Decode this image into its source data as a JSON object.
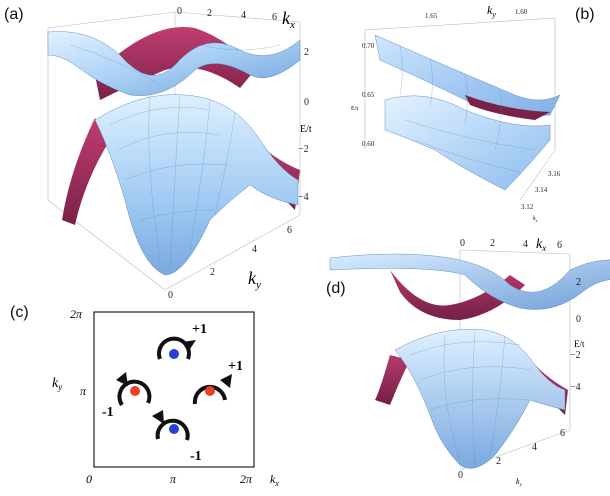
{
  "panel_labels": {
    "a": "(a)",
    "b": "(b)",
    "c": "(c)",
    "d": "(d)"
  },
  "panel_a": {
    "kx_label": "k",
    "kx_sub": "x",
    "ky_label": "k",
    "ky_sub": "y",
    "energy_label": "E/t",
    "kx_ticks": [
      "0",
      "2",
      "4",
      "6"
    ],
    "ky_ticks": [
      "0",
      "2",
      "4",
      "6"
    ],
    "e_ticks": [
      "2",
      "0",
      "−2",
      "−4"
    ]
  },
  "panel_b": {
    "ky_label": "k",
    "ky_sub": "y",
    "kx_label": "k",
    "kx_sub": "x",
    "energy_label": "E/t",
    "ky_ticks": [
      "1.65",
      "1.60"
    ],
    "e_ticks": [
      "0.70",
      "0.65",
      "0.60"
    ],
    "kx_ticks": [
      "3.16",
      "3.14",
      "3.12"
    ]
  },
  "panel_c": {
    "y_top": "2π",
    "y_mid": "π",
    "x_zero": "0",
    "x_mid": "π",
    "x_right": "2π",
    "x_axis": "k",
    "x_sub": "x",
    "y_axis": "k",
    "y_sub": "y",
    "charges": [
      {
        "label": "+1",
        "color": "#2b3fd6"
      },
      {
        "label": "-1",
        "color": "#e8412c"
      },
      {
        "label": "+1",
        "color": "#e8412c"
      },
      {
        "label": "-1",
        "color": "#2b3fd6"
      }
    ]
  },
  "panel_d": {
    "kx_label": "k",
    "kx_sub": "x",
    "ky_label": "k",
    "ky_sub": "y",
    "energy_label": "E/t",
    "kx_ticks": [
      "0",
      "2",
      "4",
      "6"
    ],
    "ky_ticks": [
      "0",
      "2",
      "4",
      "6"
    ],
    "e_ticks": [
      "2",
      "0",
      "−2",
      "−4"
    ]
  },
  "colors": {
    "surface_light": "#d6ecff",
    "surface_mid": "#8fc0f0",
    "surface_dark": "#5f8fd0",
    "underside": "#9c2c5a"
  }
}
